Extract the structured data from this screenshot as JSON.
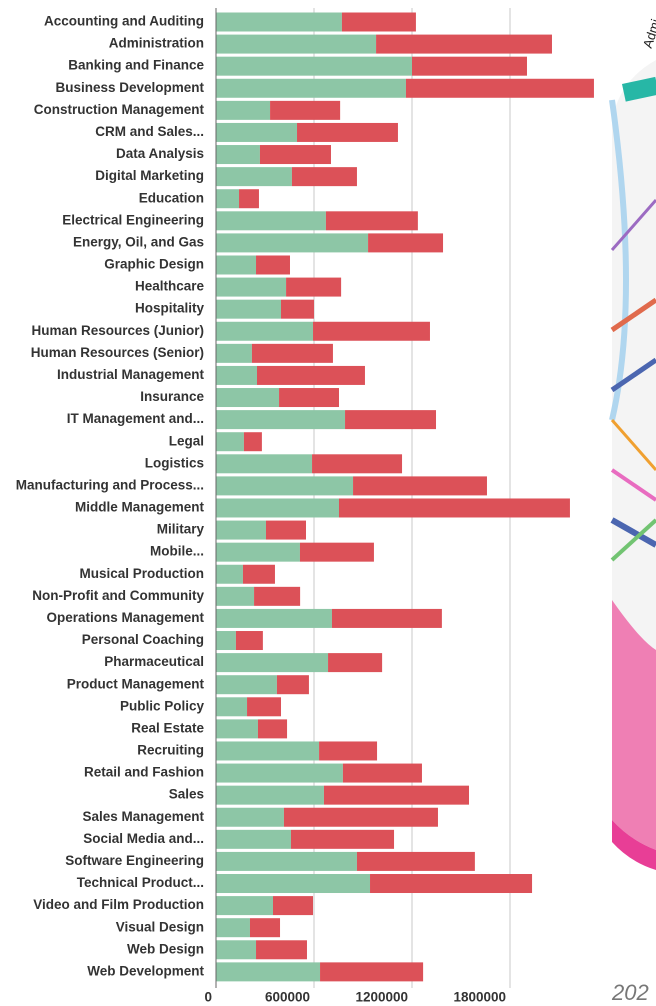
{
  "chart_data": {
    "type": "stacked_barh",
    "categories": [
      "Accounting and Auditing",
      "Administration",
      "Banking and Finance",
      "Business Development",
      "Construction Management",
      "CRM and Sales...",
      "Data Analysis",
      "Digital Marketing",
      "Education",
      "Electrical Engineering",
      "Energy, Oil, and Gas",
      "Graphic Design",
      "Healthcare",
      "Hospitality",
      "Human Resources (Junior)",
      "Human Resources (Senior)",
      "Industrial Management",
      "Insurance",
      "IT Management and...",
      "Legal",
      "Logistics",
      "Manufacturing and Process...",
      "Middle Management",
      "Military",
      "Mobile...",
      "Musical Production",
      "Non-Profit and Community",
      "Operations Management",
      "Personal Coaching",
      "Pharmaceutical",
      "Product Management",
      "Public Policy",
      "Real Estate",
      "Recruiting",
      "Retail and Fashion",
      "Sales",
      "Sales Management",
      "Social Media and...",
      "Software Engineering",
      "Technical Product...",
      "Video and Film Production",
      "Visual Design",
      "Web Design",
      "Web Development"
    ],
    "series": [
      {
        "color": "#8dc6a6",
        "values": [
          771000,
          980000,
          1200000,
          1163000,
          331000,
          496000,
          269000,
          465000,
          141000,
          673000,
          931000,
          245000,
          429000,
          398000,
          594000,
          220000,
          251000,
          386000,
          790000,
          171000,
          588000,
          839000,
          753000,
          306000,
          514000,
          165000,
          233000,
          710000,
          122000,
          686000,
          373000,
          190000,
          257000,
          631000,
          777000,
          661000,
          416000,
          459000,
          863000,
          943000,
          349000,
          208000,
          245000,
          637000
        ]
      },
      {
        "color": "#dc5158",
        "values": [
          453000,
          1077000,
          704000,
          1151000,
          429000,
          618000,
          435000,
          398000,
          122000,
          563000,
          459000,
          208000,
          337000,
          202000,
          716000,
          496000,
          661000,
          367000,
          557000,
          110000,
          551000,
          820000,
          1414000,
          245000,
          453000,
          196000,
          282000,
          673000,
          165000,
          331000,
          196000,
          208000,
          178000,
          355000,
          484000,
          888000,
          943000,
          631000,
          722000,
          992000,
          245000,
          184000,
          312000,
          631000
        ]
      }
    ],
    "xlim": [
      0,
      2400000
    ],
    "xticks": [
      0,
      600000,
      1200000,
      1800000
    ],
    "grid": true
  },
  "side_fragments": {
    "vertical_label": "Admi",
    "corner_text": "202"
  }
}
